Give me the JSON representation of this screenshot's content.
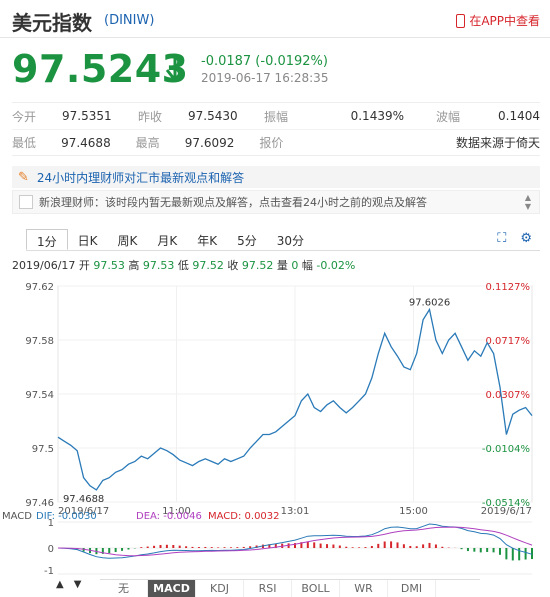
{
  "header": {
    "title": "美元指数",
    "code": "(DINIW)",
    "app_link": "在APP中查看"
  },
  "quote": {
    "price": "97.5243",
    "change": "-0.0187 (-0.0192%)",
    "time": "2019-06-17 16:28:35"
  },
  "stats": {
    "row1": [
      {
        "label": "今开",
        "value": "97.5351"
      },
      {
        "label": "昨收",
        "value": "97.5430"
      },
      {
        "label": "振幅",
        "value": "0.1439%"
      },
      {
        "label": "波幅",
        "value": "0.1404"
      }
    ],
    "row2": [
      {
        "label": "最低",
        "value": "97.4688"
      },
      {
        "label": "最高",
        "value": "97.6092"
      },
      {
        "label": "报价",
        "value": "数据来源于倚天"
      }
    ]
  },
  "news": {
    "headline": "24小时内理财师对汇市最新观点和解答",
    "sub": "新浪理财师：该时段内暂无最新观点及解答，点击查看24小时之前的观点及解答"
  },
  "tabs": [
    "1分",
    "日K",
    "周K",
    "月K",
    "年K",
    "5分",
    "30分"
  ],
  "active_tab": "1分",
  "ohlc": {
    "date": "2019/06/17",
    "open_label": "开",
    "open": "97.53",
    "high_label": "高",
    "high": "97.53",
    "low_label": "低",
    "low": "97.52",
    "close_label": "收",
    "close": "97.52",
    "vol_label": "量",
    "vol": "0",
    "amp_label": "幅",
    "amp": "-0.02%"
  },
  "indicators": [
    "无",
    "MACD",
    "KDJ",
    "RSI",
    "BOLL",
    "WR",
    "DMI"
  ],
  "active_indicator": "MACD",
  "macd": {
    "label": "MACD",
    "dif": "DIF: -0.0030",
    "dea": "DEA: -0.0046",
    "macd": "MACD: 0.0032",
    "ticks": [
      "1",
      "0",
      "-1"
    ]
  },
  "colors": {
    "up": "#d6262c",
    "down": "#1b9341",
    "line": "#2a7ab8"
  },
  "chart_data": {
    "type": "line",
    "title": "",
    "y_ticks": [
      "97.62",
      "97.58",
      "97.54",
      "97.5",
      "97.46"
    ],
    "y_right_ticks": [
      "0.1127%",
      "0.0717%",
      "0.0307%",
      "-0.0104%",
      "-0.0514%"
    ],
    "x_ticks": [
      "2019/6/17",
      "11:00",
      "13:01",
      "15:00",
      "2019/6/17"
    ],
    "ylim": [
      97.46,
      97.62
    ],
    "prev_close": 97.543,
    "annotations": [
      {
        "text": "97.6026",
        "x_index": 58,
        "y": 97.6026
      },
      {
        "text": "97.4688",
        "x_index": 4,
        "y": 97.4688
      }
    ],
    "series": [
      {
        "values": [
          97.508,
          97.505,
          97.502,
          97.498,
          97.478,
          97.472,
          97.469,
          97.476,
          97.478,
          97.482,
          97.484,
          97.488,
          97.49,
          97.494,
          97.492,
          97.496,
          97.5,
          97.498,
          97.495,
          97.491,
          97.489,
          97.487,
          97.49,
          97.492,
          97.49,
          97.488,
          97.492,
          97.49,
          97.492,
          97.494,
          97.5,
          97.505,
          97.51,
          97.51,
          97.512,
          97.516,
          97.52,
          97.524,
          97.535,
          97.54,
          97.53,
          97.527,
          97.532,
          97.535,
          97.53,
          97.526,
          97.53,
          97.535,
          97.54,
          97.552,
          97.57,
          97.585,
          97.575,
          97.568,
          97.56,
          97.558,
          97.57,
          97.595,
          97.6026,
          97.58,
          97.57,
          97.58,
          97.585,
          97.575,
          97.565,
          97.572,
          97.568,
          97.578,
          97.57,
          97.545,
          97.51,
          97.525,
          97.528,
          97.53,
          97.524
        ]
      }
    ]
  }
}
